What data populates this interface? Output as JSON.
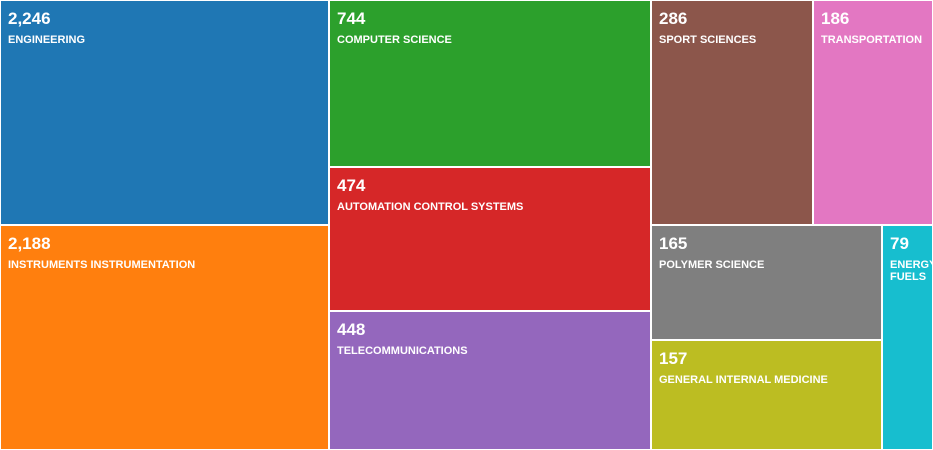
{
  "chart_data": {
    "type": "treemap",
    "items": [
      {
        "id": "engineering",
        "name": "ENGINEERING",
        "value": 2246,
        "value_label": "2,246",
        "color": "#1f77b4"
      },
      {
        "id": "instruments-instrumentation",
        "name": "INSTRUMENTS INSTRUMENTATION",
        "value": 2188,
        "value_label": "2,188",
        "color": "#ff7f0e"
      },
      {
        "id": "computer-science",
        "name": "COMPUTER SCIENCE",
        "value": 744,
        "value_label": "744",
        "color": "#2ca02c"
      },
      {
        "id": "automation-control-systems",
        "name": "AUTOMATION CONTROL SYSTEMS",
        "value": 474,
        "value_label": "474",
        "color": "#d62728"
      },
      {
        "id": "telecommunications",
        "name": "TELECOMMUNICATIONS",
        "value": 448,
        "value_label": "448",
        "color": "#9467bd"
      },
      {
        "id": "sport-sciences",
        "name": "SPORT SCIENCES",
        "value": 286,
        "value_label": "286",
        "color": "#8c564b"
      },
      {
        "id": "transportation",
        "name": "TRANSPORTATION",
        "value": 186,
        "value_label": "186",
        "color": "#e377c2"
      },
      {
        "id": "polymer-science",
        "name": "POLYMER SCIENCE",
        "value": 165,
        "value_label": "165",
        "color": "#7f7f7f"
      },
      {
        "id": "general-internal-medicine",
        "name": "GENERAL INTERNAL MEDICINE",
        "value": 157,
        "value_label": "157",
        "color": "#bcbd22"
      },
      {
        "id": "energy-fuels",
        "name": "ENERGY FUELS",
        "value": 79,
        "value_label": "79",
        "color": "#17becf"
      }
    ]
  }
}
